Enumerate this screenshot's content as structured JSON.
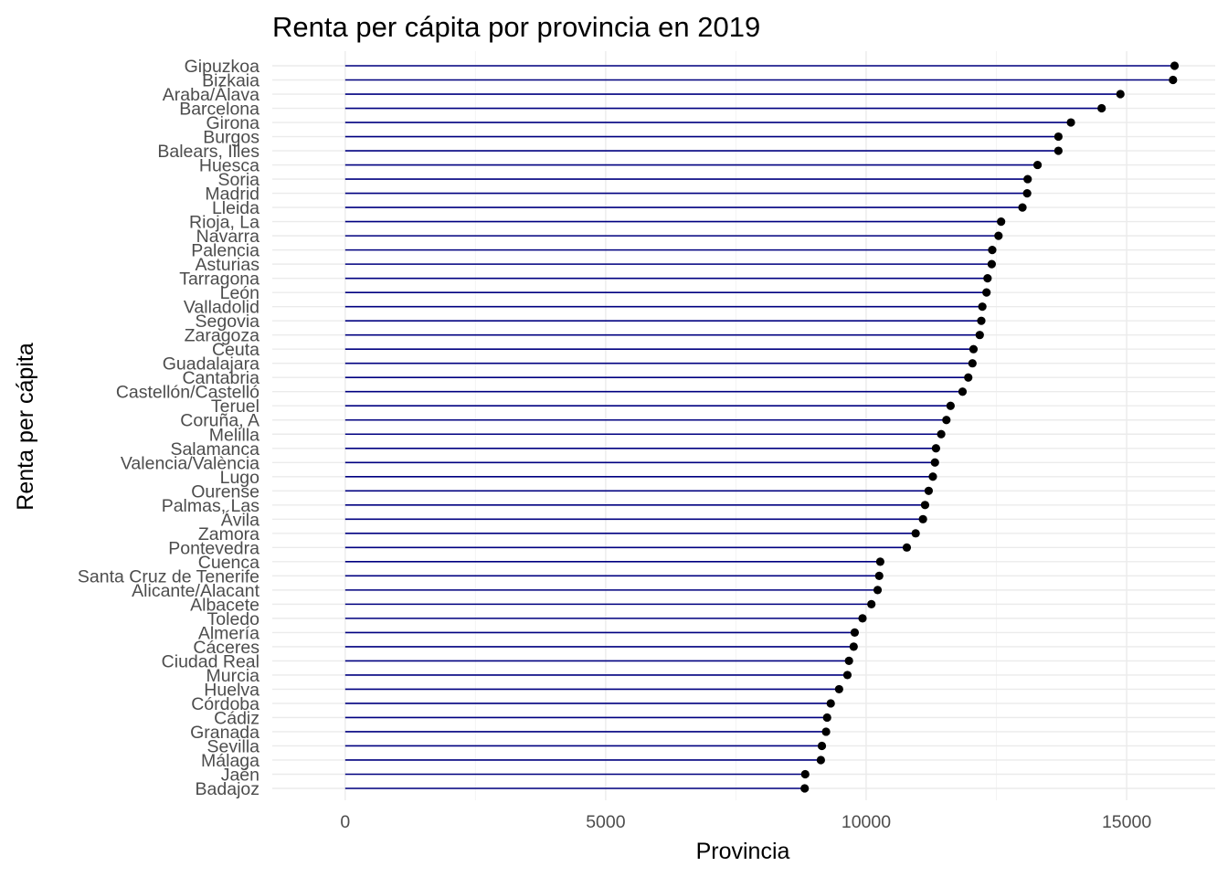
{
  "chart_data": {
    "type": "lollipop",
    "title": "Renta per cápita por provincia en 2019",
    "xlabel": "Provincia",
    "ylabel": "Renta per cápita",
    "xlim": [
      -1400,
      16700
    ],
    "x_ticks": [
      0,
      5000,
      10000,
      15000
    ],
    "x_tick_labels": [
      "0",
      "5000",
      "10000",
      "15000"
    ],
    "grid": true,
    "segment_color": "#000080",
    "point_color": "#000000",
    "categories": [
      "Gipuzkoa",
      "Bizkaia",
      "Araba/Álava",
      "Barcelona",
      "Girona",
      "Burgos",
      "Balears, Illes",
      "Huesca",
      "Soria",
      "Madrid",
      "Lleida",
      "Rioja, La",
      "Navarra",
      "Palencia",
      "Asturias",
      "Tarragona",
      "León",
      "Valladolid",
      "Segovia",
      "Zaragoza",
      "Ceuta",
      "Guadalajara",
      "Cantabria",
      "Castellón/Castelló",
      "Teruel",
      "Coruña, A",
      "Melilla",
      "Salamanca",
      "Valencia/València",
      "Lugo",
      "Ourense",
      "Palmas, Las",
      "Ávila",
      "Zamora",
      "Pontevedra",
      "Cuenca",
      "Santa Cruz de Tenerife",
      "Alicante/Alacant",
      "Albacete",
      "Toledo",
      "Almería",
      "Cáceres",
      "Ciudad Real",
      "Murcia",
      "Huelva",
      "Córdoba",
      "Cádiz",
      "Granada",
      "Sevilla",
      "Málaga",
      "Jaén",
      "Badajoz"
    ],
    "values": [
      15920,
      15890,
      14880,
      14520,
      13930,
      13690,
      13690,
      13290,
      13100,
      13090,
      13000,
      12590,
      12540,
      12420,
      12410,
      12330,
      12310,
      12230,
      12210,
      12180,
      12060,
      12040,
      11960,
      11850,
      11620,
      11540,
      11440,
      11340,
      11320,
      11280,
      11200,
      11130,
      11090,
      10950,
      10780,
      10270,
      10250,
      10220,
      10100,
      9930,
      9780,
      9760,
      9670,
      9640,
      9480,
      9320,
      9250,
      9230,
      9150,
      9130,
      8830,
      8820
    ]
  }
}
